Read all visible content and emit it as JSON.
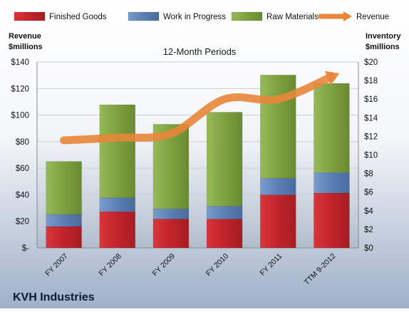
{
  "chart_data": {
    "type": "bar",
    "stacked": true,
    "title": "12-Month Periods",
    "footer_title": "KVH Industries",
    "left_axis_label": [
      "Revenue",
      "$millions"
    ],
    "right_axis_label": [
      "Inventory",
      "$millions"
    ],
    "categories": [
      "FY 2007",
      "FY 2008",
      "FY 2009",
      "FY 2010",
      "FY 2011",
      "TTM 9-2012"
    ],
    "left_axis": {
      "min": 0,
      "max": 140,
      "step": 20,
      "ticks": [
        "$-",
        "$20",
        "$40",
        "$60",
        "$80",
        "$100",
        "$120",
        "$140"
      ]
    },
    "right_axis": {
      "min": 0,
      "max": 20,
      "step": 2,
      "ticks": [
        "$0",
        "$2",
        "$4",
        "$6",
        "$8",
        "$10",
        "$12",
        "$14",
        "$16",
        "$18",
        "$20"
      ]
    },
    "series": [
      {
        "name": "Finished Goods",
        "axis": "right",
        "color": "#c0242b",
        "values": [
          2.3,
          3.9,
          3.1,
          3.1,
          5.7,
          5.9
        ]
      },
      {
        "name": "Work in Progress",
        "axis": "right",
        "color": "#5a7fb5",
        "values": [
          1.3,
          1.5,
          1.1,
          1.4,
          1.8,
          2.2
        ]
      },
      {
        "name": "Raw Materials",
        "axis": "right",
        "color": "#7ea03e",
        "values": [
          5.7,
          10.0,
          9.1,
          10.1,
          11.1,
          9.6
        ]
      },
      {
        "name": "Revenue",
        "axis": "left",
        "type": "line",
        "color": "#e8863a",
        "values": [
          81,
          83,
          86,
          112,
          112,
          129
        ]
      }
    ],
    "legend_position": "top",
    "grid": true
  }
}
